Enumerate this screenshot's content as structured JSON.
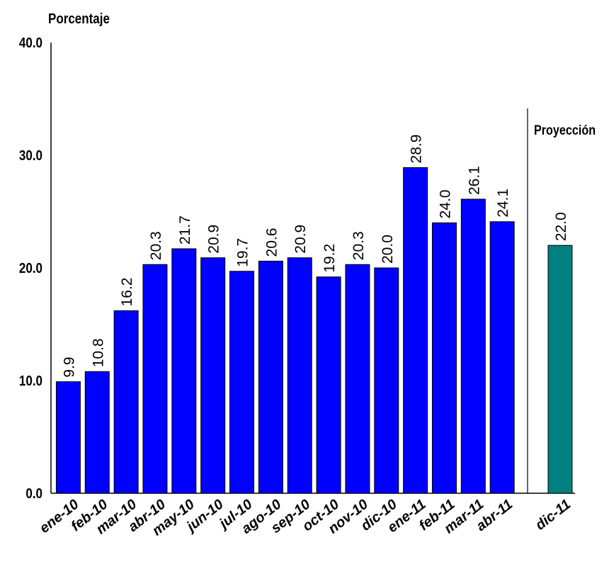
{
  "chart_data": {
    "type": "bar",
    "ylabel": "Porcentaje",
    "annotation": "Proyección",
    "ylim": [
      0,
      40
    ],
    "yticks": [
      "0.0",
      "10.0",
      "20.0",
      "30.0",
      "40.0"
    ],
    "grid": false,
    "series": [
      {
        "categories": [
          "ene-10",
          "feb-10",
          "mar-10",
          "abr-10",
          "may-10",
          "jun-10",
          "jul-10",
          "ago-10",
          "sep-10",
          "oct-10",
          "nov-10",
          "dic-10",
          "ene-11",
          "feb-11",
          "mar-11",
          "abr-11"
        ],
        "values": [
          9.9,
          10.8,
          16.2,
          20.3,
          21.7,
          20.9,
          19.7,
          20.6,
          20.9,
          19.2,
          20.3,
          20.0,
          28.9,
          24.0,
          26.1,
          24.1
        ],
        "color": "#0000ff"
      },
      {
        "categories": [
          "dic-11"
        ],
        "values": [
          22.0
        ],
        "color": "#008080"
      }
    ]
  }
}
